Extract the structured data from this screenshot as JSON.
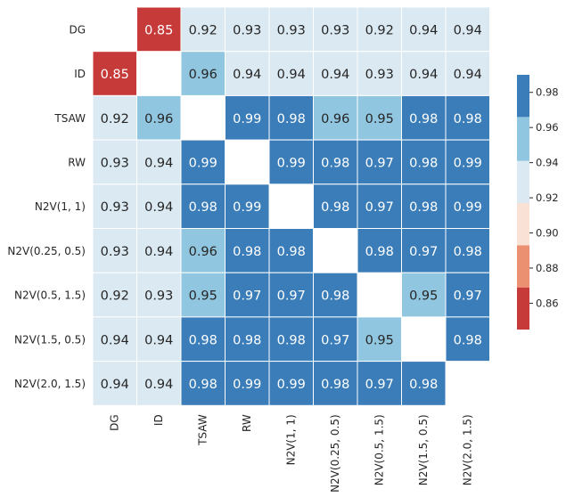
{
  "chart_data": {
    "type": "heatmap",
    "title": "",
    "xlabel": "",
    "ylabel": "",
    "rows": [
      "DG",
      "ID",
      "TSAW",
      "RW",
      "N2V(1, 1)",
      "N2V(0.25, 0.5)",
      "N2V(0.5, 1.5)",
      "N2V(1.5, 0.5)",
      "N2V(2.0, 1.5)"
    ],
    "columns": [
      "DG",
      "ID",
      "TSAW",
      "RW",
      "N2V(1, 1)",
      "N2V(0.25, 0.5)",
      "N2V(0.5, 1.5)",
      "N2V(1.5, 0.5)",
      "N2V(2.0, 1.5)"
    ],
    "values": [
      [
        null,
        0.85,
        0.92,
        0.93,
        0.93,
        0.93,
        0.92,
        0.94,
        0.94
      ],
      [
        0.85,
        null,
        0.96,
        0.94,
        0.94,
        0.94,
        0.93,
        0.94,
        0.94
      ],
      [
        0.92,
        0.96,
        null,
        0.99,
        0.98,
        0.96,
        0.95,
        0.98,
        0.98
      ],
      [
        0.93,
        0.94,
        0.99,
        null,
        0.99,
        0.98,
        0.97,
        0.98,
        0.99
      ],
      [
        0.93,
        0.94,
        0.98,
        0.99,
        null,
        0.98,
        0.97,
        0.98,
        0.99
      ],
      [
        0.93,
        0.94,
        0.96,
        0.98,
        0.98,
        null,
        0.98,
        0.97,
        0.98
      ],
      [
        0.92,
        0.93,
        0.95,
        0.97,
        0.97,
        0.98,
        null,
        0.95,
        0.97
      ],
      [
        0.94,
        0.94,
        0.98,
        0.98,
        0.98,
        0.97,
        0.95,
        null,
        0.98
      ],
      [
        0.94,
        0.94,
        0.98,
        0.99,
        0.99,
        0.98,
        0.97,
        0.98,
        null
      ]
    ],
    "colorbar": {
      "range": [
        0.845,
        0.99
      ],
      "ticks": [
        "0.86",
        "0.88",
        "0.90",
        "0.92",
        "0.94",
        "0.96",
        "0.98"
      ],
      "bins": [
        {
          "from": 0.845,
          "to": 0.869,
          "color": "#c73a3a"
        },
        {
          "from": 0.869,
          "to": 0.893,
          "color": "#ec9072"
        },
        {
          "from": 0.893,
          "to": 0.917,
          "color": "#fae1d5"
        },
        {
          "from": 0.917,
          "to": 0.941,
          "color": "#dbe9f2"
        },
        {
          "from": 0.941,
          "to": 0.966,
          "color": "#90c6df"
        },
        {
          "from": 0.966,
          "to": 0.99,
          "color": "#3a7db9"
        }
      ]
    },
    "grid": false,
    "legend": "colorbar-right"
  }
}
